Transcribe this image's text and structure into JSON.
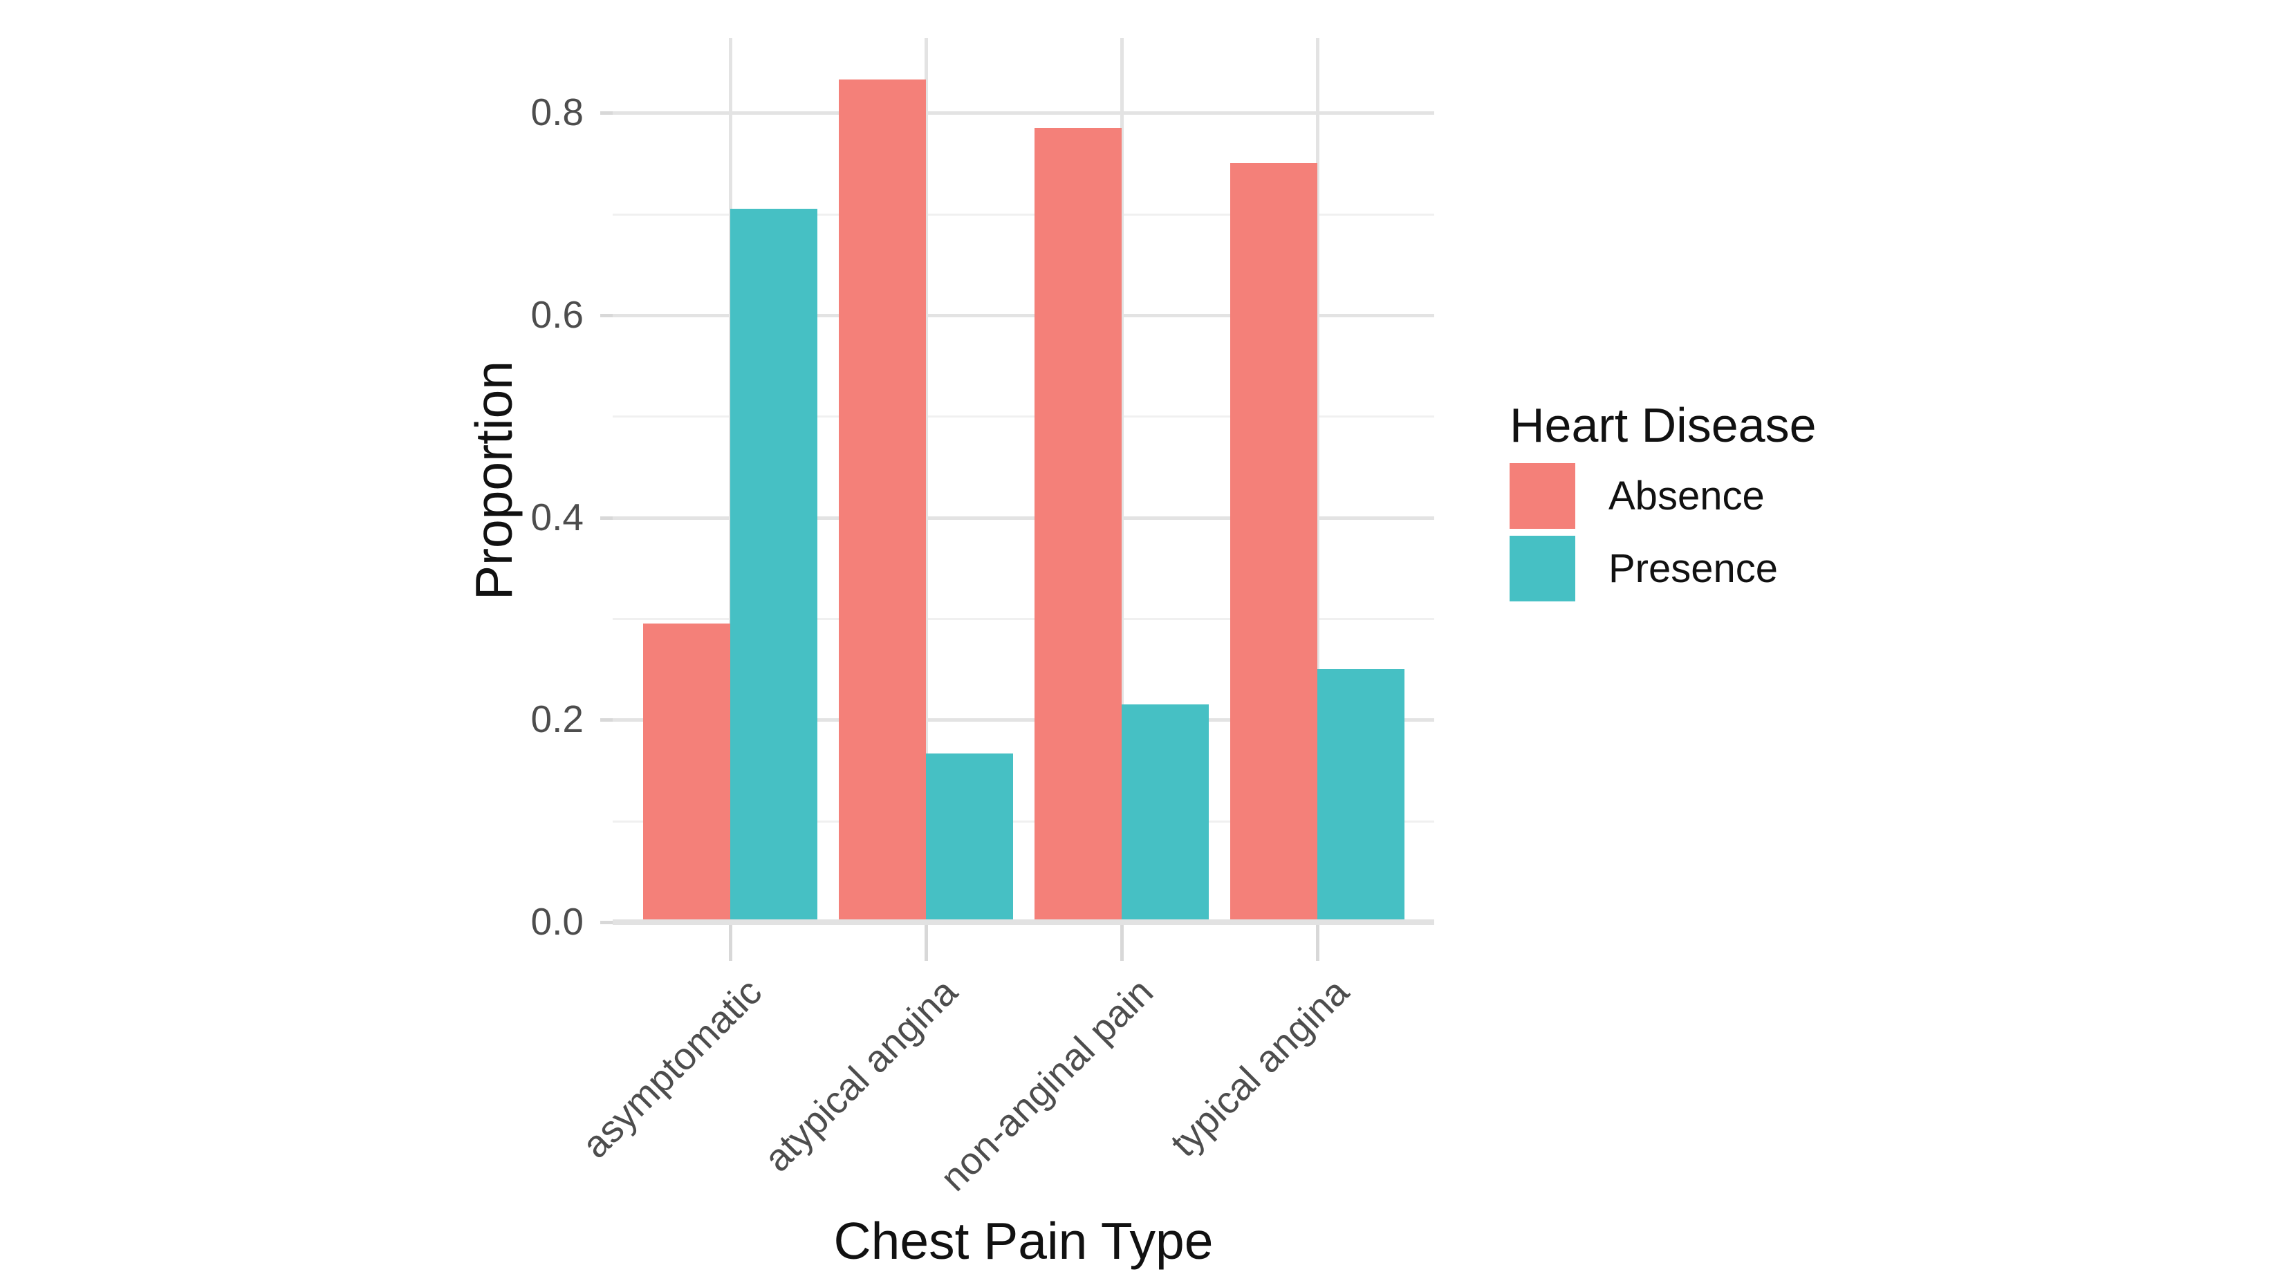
{
  "chart_data": {
    "type": "bar",
    "subtype": "grouped-dodged",
    "title": "",
    "xlabel": "Chest Pain Type",
    "ylabel": "Proportion",
    "categories": [
      "asymptomatic",
      "atypical angina",
      "non-anginal pain",
      "typical angina"
    ],
    "series": [
      {
        "name": "Absence",
        "color": "#f48079",
        "values": [
          0.295,
          0.833,
          0.785,
          0.75
        ]
      },
      {
        "name": "Presence",
        "color": "#46c0c4",
        "values": [
          0.705,
          0.167,
          0.215,
          0.25
        ]
      }
    ],
    "legend": {
      "title": "Heart Disease",
      "position": "right",
      "entries": [
        "Absence",
        "Presence"
      ]
    },
    "y_ticks": {
      "labels": [
        "0.0",
        "0.2",
        "0.4",
        "0.6",
        "0.8"
      ],
      "values": [
        0.0,
        0.2,
        0.4,
        0.6,
        0.8
      ]
    },
    "y_minor_ticks": [
      0.1,
      0.3,
      0.5,
      0.7
    ],
    "ylim": [
      0,
      0.874
    ],
    "x_tick_angle_deg": 45,
    "grid": {
      "horizontal_major": true,
      "horizontal_minor": true,
      "vertical_major_at_categories": true
    },
    "style": {
      "background": "#ffffff",
      "grid_major_color": "#e3e3e3",
      "grid_minor_color": "#f0f0f0",
      "axis_line_color": "#e2e2e2",
      "tick_mark_color": "#d8d8d8",
      "tick_label_color": "#4d4d4d",
      "title_color": "#111111"
    }
  }
}
